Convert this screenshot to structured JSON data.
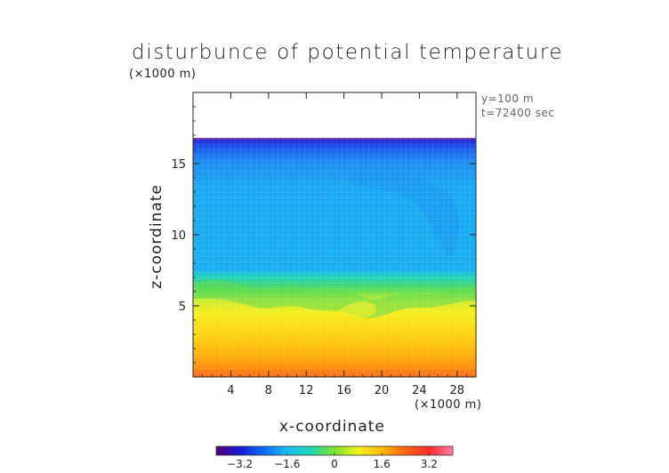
{
  "chart_data": {
    "type": "heatmap",
    "title": "disturbunce of potential temperature",
    "xlabel": "x-coordinate",
    "ylabel": "z-coordinate",
    "x_unit": "(×1000 m)",
    "y_unit": "(×1000 m)",
    "annotations": [
      "y=100 m",
      "t=72400 sec"
    ],
    "xlim": [
      0,
      30
    ],
    "ylim": [
      0,
      20
    ],
    "x_ticks": [
      4,
      8,
      12,
      16,
      20,
      24,
      28
    ],
    "y_ticks": [
      5,
      10,
      15
    ],
    "colorbar": {
      "ticks": [
        "−3.2",
        "−1.6",
        "0",
        "1.6",
        "3.2"
      ],
      "tick_values": [
        -3.2,
        -1.6,
        0,
        1.6,
        3.2
      ],
      "range": [
        -4.0,
        4.0
      ],
      "colors": [
        "#5a007a",
        "#1418d8",
        "#0b6cf6",
        "#17bff0",
        "#21d6b1",
        "#7ee32a",
        "#f2f21b",
        "#ffb80a",
        "#ff6414",
        "#ff2a2a",
        "#ff7fa6"
      ]
    },
    "field_top_z": 16.8,
    "layers": [
      {
        "z_range": [
          0,
          2
        ],
        "value_approx": 2.4
      },
      {
        "z_range": [
          2,
          5
        ],
        "value_approx": 1.6
      },
      {
        "z_range": [
          5,
          7
        ],
        "value_approx": 0.6
      },
      {
        "z_range": [
          7,
          16.5
        ],
        "value_approx": -1.3
      },
      {
        "z_range": [
          16.5,
          16.8
        ],
        "value_approx": -3.2
      }
    ]
  }
}
